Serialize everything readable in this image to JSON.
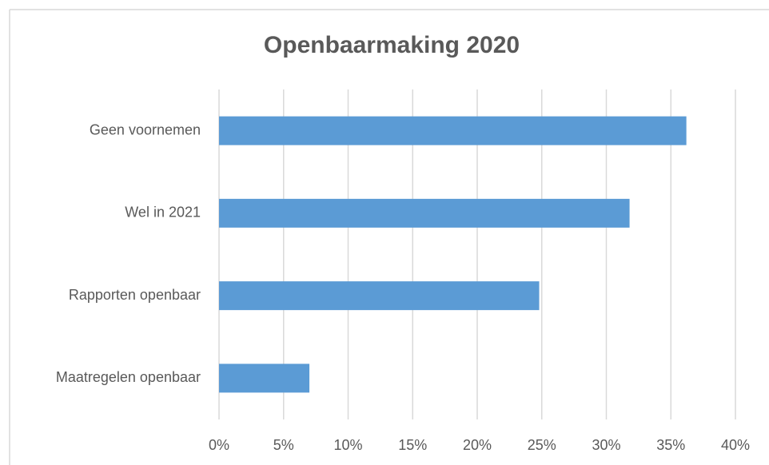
{
  "chart_data": {
    "type": "hbar",
    "title": "Openbaarmaking 2020",
    "categories": [
      "Geen voornemen",
      "Wel in 2021",
      "Rapporten openbaar",
      "Maatregelen openbaar"
    ],
    "values": [
      36.2,
      31.8,
      24.8,
      7.0
    ],
    "color": "#5b9bd5",
    "xlim": [
      0,
      40
    ],
    "xticks": [
      {
        "value": 0,
        "label": "0%"
      },
      {
        "value": 5,
        "label": "5%"
      },
      {
        "value": 10,
        "label": "10%"
      },
      {
        "value": 15,
        "label": "15%"
      },
      {
        "value": 20,
        "label": "20%"
      },
      {
        "value": 25,
        "label": "25%"
      },
      {
        "value": 30,
        "label": "30%"
      },
      {
        "value": 35,
        "label": "35%"
      },
      {
        "value": 40,
        "label": "40%"
      }
    ],
    "grid": true
  }
}
